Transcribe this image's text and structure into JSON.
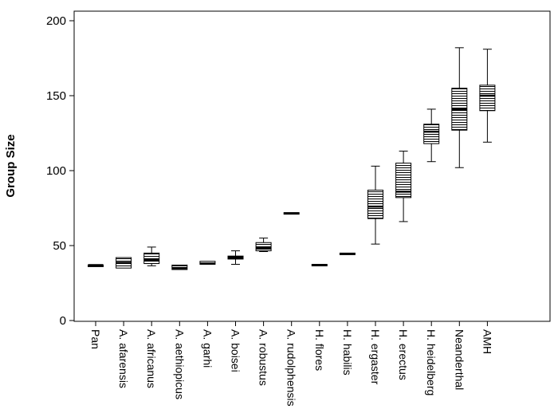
{
  "chart_data": {
    "type": "box",
    "ylabel": "Group Size",
    "xlabel": "",
    "ylim": [
      0,
      200
    ],
    "yticks": [
      0,
      50,
      100,
      150,
      200
    ],
    "grid": false,
    "categories": [
      "Pan",
      "A. afarensis",
      "A. africanus",
      "A. aethiopicus",
      "A. garhi",
      "A. boisei",
      "A. robustus",
      "A. rudolphensis",
      "H. flores",
      "H. habilis",
      "H. ergaster",
      "H. erectus",
      "H. heidelberg",
      "Neanderthal",
      "AMH"
    ],
    "boxes": [
      {
        "min": 37,
        "q1": 37,
        "median": 37,
        "q3": 37,
        "max": 37
      },
      {
        "min": 35,
        "q1": 35,
        "median": 38.5,
        "q3": 42,
        "max": 42
      },
      {
        "min": 36.5,
        "q1": 38,
        "median": 40.5,
        "q3": 45,
        "max": 49
      },
      {
        "min": 34,
        "q1": 34,
        "median": 35,
        "q3": 37,
        "max": 37
      },
      {
        "min": 37.5,
        "q1": 37.5,
        "median": 38,
        "q3": 39.5,
        "max": 39.5
      },
      {
        "min": 37.5,
        "q1": 41,
        "median": 42,
        "q3": 43,
        "max": 46.5
      },
      {
        "min": 46,
        "q1": 46.5,
        "median": 48.5,
        "q3": 52,
        "max": 55
      },
      {
        "min": 71,
        "q1": 71,
        "median": 71.5,
        "q3": 72,
        "max": 72
      },
      {
        "min": 36.5,
        "q1": 36.5,
        "median": 37,
        "q3": 37.5,
        "max": 37.5
      },
      {
        "min": 44,
        "q1": 44,
        "median": 44.5,
        "q3": 45,
        "max": 45
      },
      {
        "min": 51,
        "q1": 68,
        "median": 76,
        "q3": 87,
        "max": 103
      },
      {
        "min": 66,
        "q1": 82,
        "median": 86,
        "q3": 105,
        "max": 113
      },
      {
        "min": 106,
        "q1": 118,
        "median": 126,
        "q3": 131,
        "max": 141
      },
      {
        "min": 102,
        "q1": 127,
        "median": 141,
        "q3": 155,
        "max": 182
      },
      {
        "min": 119,
        "q1": 140,
        "median": 150,
        "q3": 157,
        "max": 181
      }
    ]
  }
}
